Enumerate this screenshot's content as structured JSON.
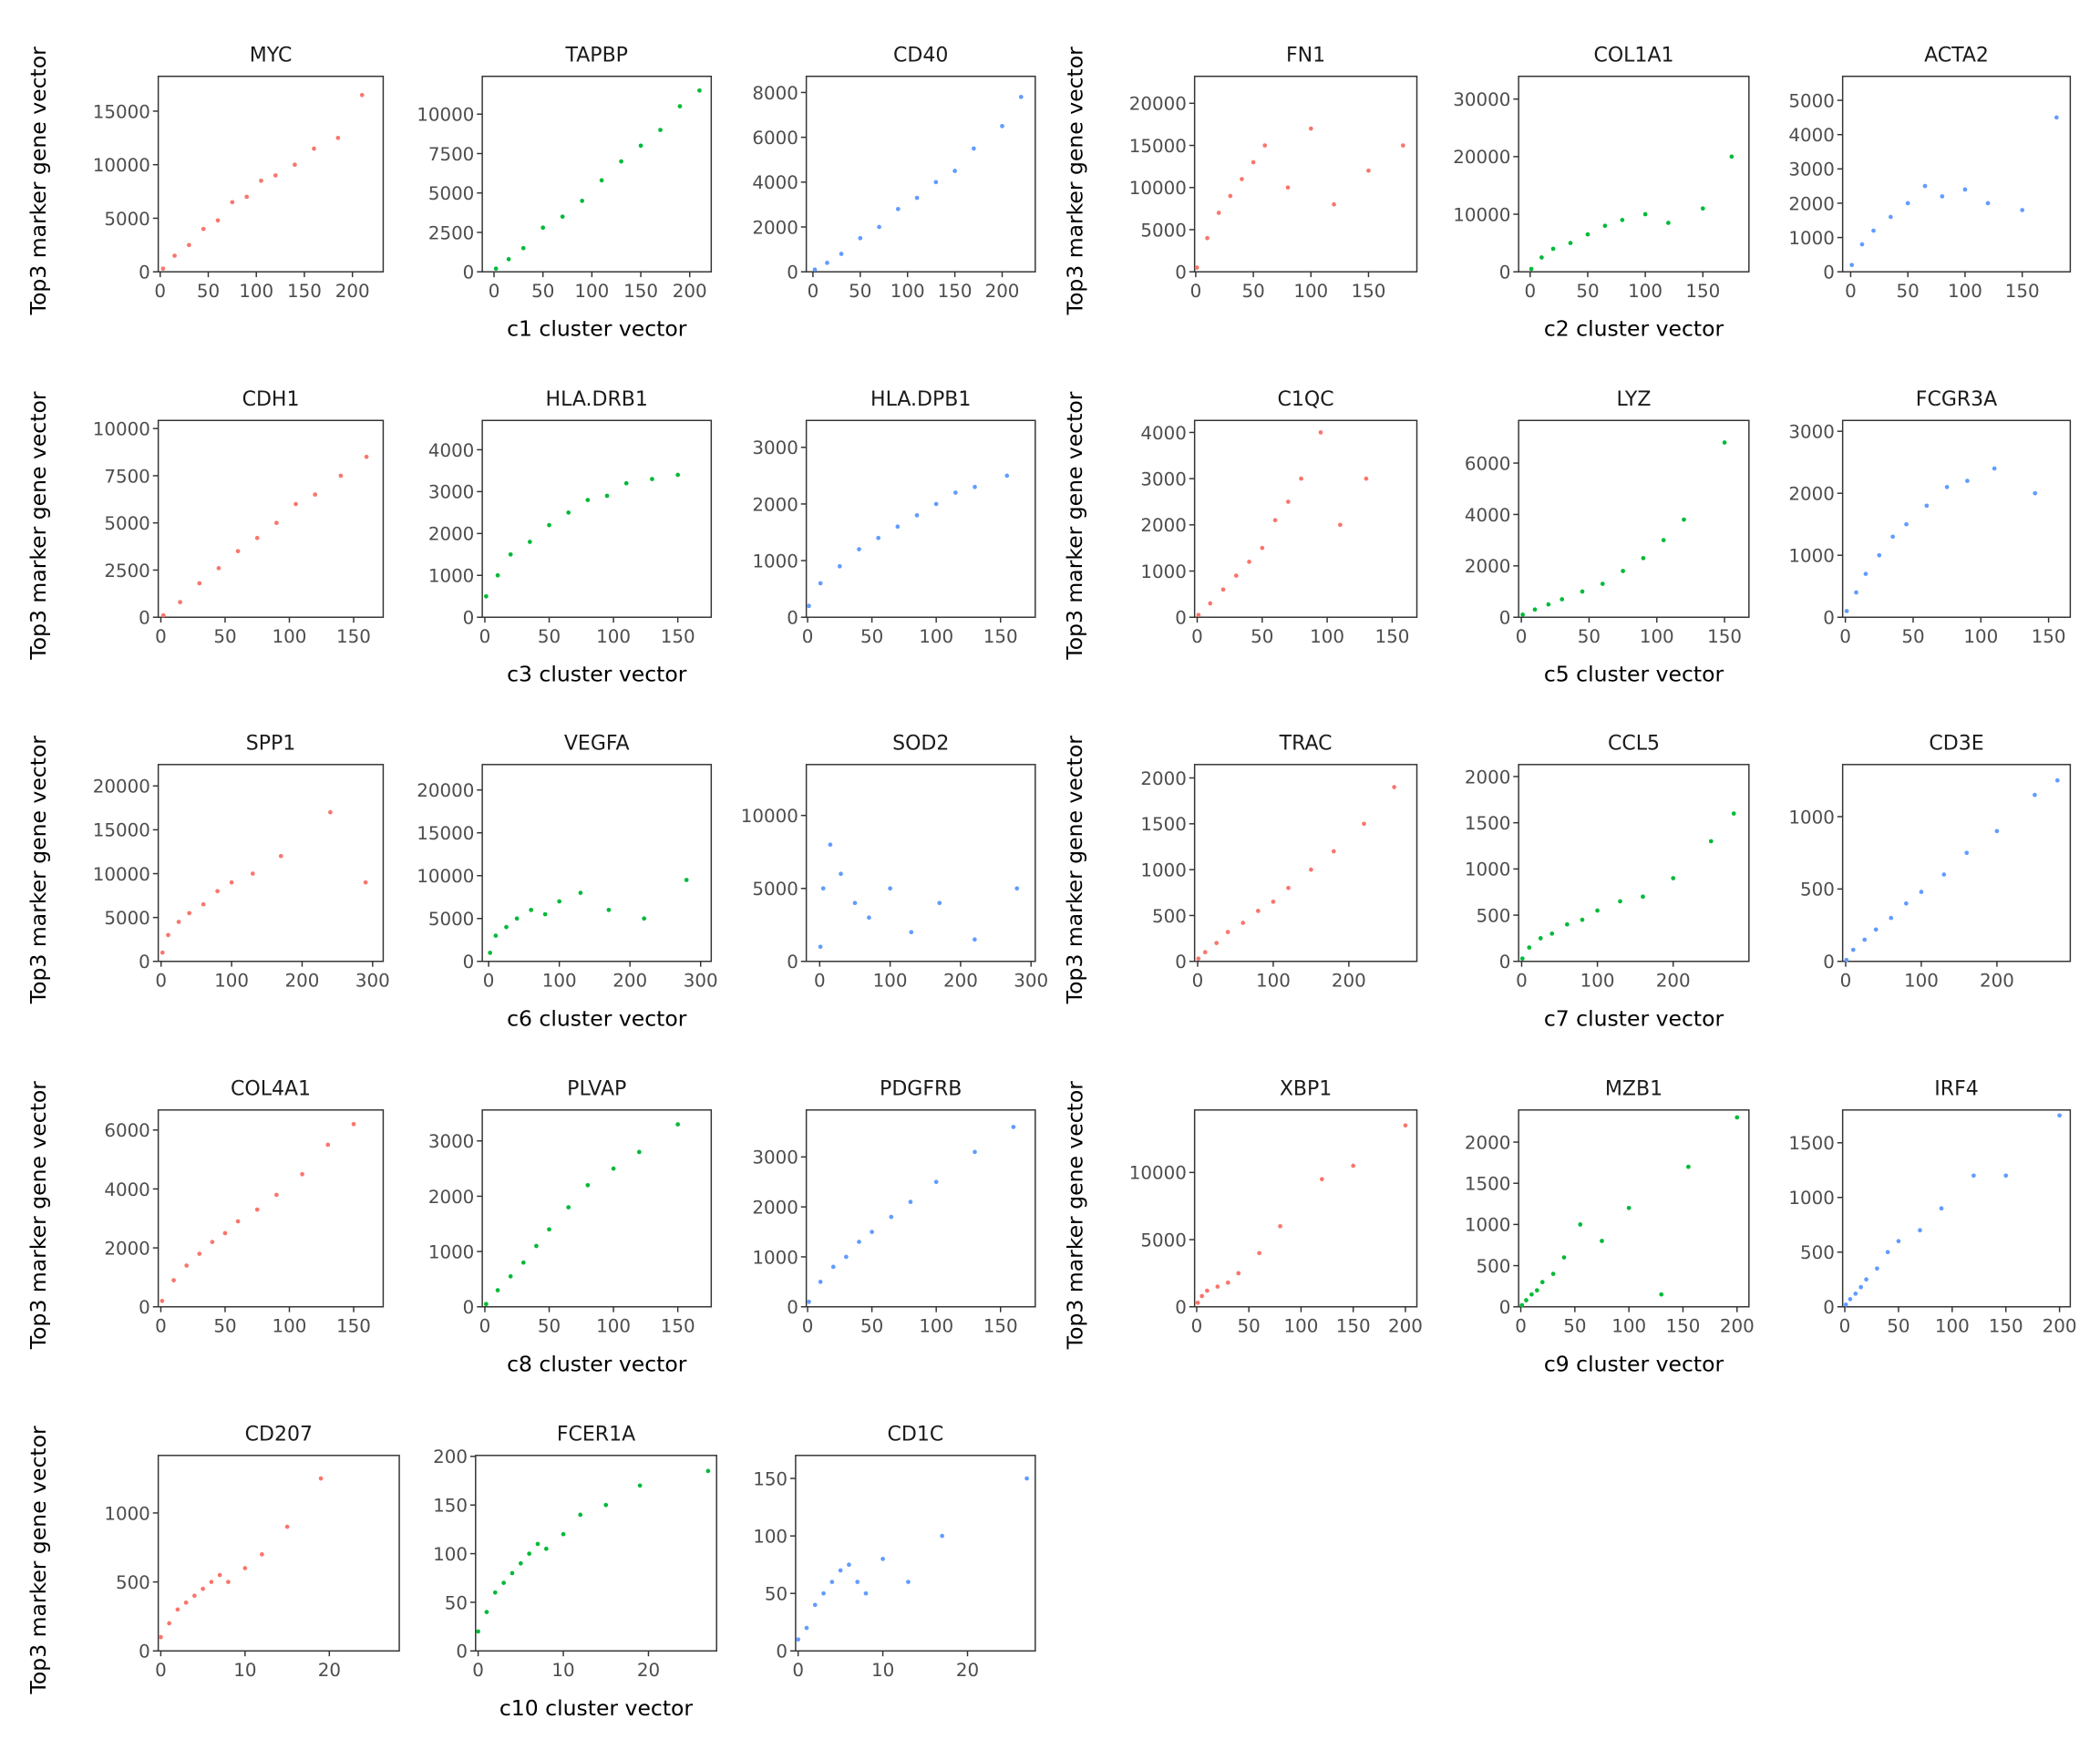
{
  "chart_data": [
    {
      "type": "scatter",
      "title": "MYC",
      "ylabel": "Top3 marker gene vector",
      "color": "#F8766D",
      "xlim": [
        -2,
        232
      ],
      "ylim": [
        0,
        18250
      ],
      "xticks": [
        0,
        50,
        100,
        150,
        200
      ],
      "yticks": [
        0,
        5000,
        10000,
        15000
      ],
      "x": [
        3,
        15,
        30,
        45,
        60,
        75,
        90,
        105,
        120,
        140,
        160,
        185,
        210
      ],
      "values": [
        300,
        1500,
        2500,
        4000,
        4800,
        6500,
        7000,
        8500,
        9000,
        10000,
        11500,
        12500,
        16500
      ]
    },
    {
      "type": "scatter",
      "title": "TAPBP",
      "xlabel": "c1 cluster vector",
      "color": "#00BA38",
      "xlim": [
        -12,
        222
      ],
      "ylim": [
        0,
        12400
      ],
      "xticks": [
        0,
        50,
        100,
        150,
        200
      ],
      "yticks": [
        0,
        2500,
        5000,
        7500,
        10000
      ],
      "x": [
        2,
        15,
        30,
        50,
        70,
        90,
        110,
        130,
        150,
        170,
        190,
        210
      ],
      "values": [
        200,
        800,
        1500,
        2800,
        3500,
        4500,
        5800,
        7000,
        8000,
        9000,
        10500,
        11500
      ]
    },
    {
      "type": "scatter",
      "title": "CD40",
      "color": "#619CFF",
      "xlim": [
        -7,
        235
      ],
      "ylim": [
        0,
        8720
      ],
      "xticks": [
        0,
        50,
        100,
        150,
        200
      ],
      "yticks": [
        0,
        2000,
        4000,
        6000,
        8000
      ],
      "x": [
        2,
        15,
        30,
        50,
        70,
        90,
        110,
        130,
        150,
        170,
        200,
        220
      ],
      "values": [
        100,
        400,
        800,
        1500,
        2000,
        2800,
        3300,
        4000,
        4500,
        5500,
        6500,
        7800
      ]
    },
    {
      "type": "scatter",
      "title": "FN1",
      "ylabel": "Top3 marker gene vector",
      "color": "#F8766D",
      "xlim": [
        -1,
        192
      ],
      "ylim": [
        0,
        23200
      ],
      "xticks": [
        0,
        50,
        100,
        150
      ],
      "yticks": [
        0,
        5000,
        10000,
        15000,
        20000
      ],
      "x": [
        1,
        10,
        20,
        30,
        40,
        50,
        60,
        80,
        100,
        120,
        150,
        180
      ],
      "values": [
        500,
        4000,
        7000,
        9000,
        11000,
        13000,
        15000,
        10000,
        17000,
        8000,
        12000,
        15000
      ]
    },
    {
      "type": "scatter",
      "title": "COL1A1",
      "xlabel": "c2 cluster vector",
      "color": "#00BA38",
      "xlim": [
        -10,
        190
      ],
      "ylim": [
        0,
        33950
      ],
      "xticks": [
        0,
        50,
        100,
        150
      ],
      "yticks": [
        0,
        10000,
        20000,
        30000
      ],
      "x": [
        1,
        10,
        20,
        35,
        50,
        65,
        80,
        100,
        120,
        150,
        175
      ],
      "values": [
        500,
        2500,
        4000,
        5000,
        6500,
        8000,
        9000,
        10000,
        8500,
        11000,
        20000
      ]
    },
    {
      "type": "scatter",
      "title": "ACTA2",
      "color": "#619CFF",
      "xlim": [
        -7,
        192
      ],
      "ylim": [
        0,
        5700
      ],
      "xticks": [
        0,
        50,
        100,
        150
      ],
      "yticks": [
        0,
        1000,
        2000,
        3000,
        4000,
        5000
      ],
      "x": [
        1,
        10,
        20,
        35,
        50,
        65,
        80,
        100,
        120,
        150,
        180
      ],
      "values": [
        200,
        800,
        1200,
        1600,
        2000,
        2500,
        2200,
        2400,
        2000,
        1800,
        4500
      ]
    },
    {
      "type": "scatter",
      "title": "CDH1",
      "ylabel": "Top3 marker gene vector",
      "color": "#F8766D",
      "xlim": [
        -2,
        173
      ],
      "ylim": [
        0,
        10430
      ],
      "xticks": [
        0,
        50,
        100,
        150
      ],
      "yticks": [
        0,
        2500,
        5000,
        7500,
        10000
      ],
      "x": [
        2,
        15,
        30,
        45,
        60,
        75,
        90,
        105,
        120,
        140,
        160
      ],
      "values": [
        100,
        800,
        1800,
        2600,
        3500,
        4200,
        5000,
        6000,
        6500,
        7500,
        8500
      ]
    },
    {
      "type": "scatter",
      "title": "HLA.DRB1",
      "xlabel": "c3 cluster vector",
      "color": "#00BA38",
      "xlim": [
        -2,
        176
      ],
      "ylim": [
        0,
        4700
      ],
      "xticks": [
        0,
        50,
        100,
        150
      ],
      "yticks": [
        0,
        1000,
        2000,
        3000,
        4000
      ],
      "x": [
        1,
        10,
        20,
        35,
        50,
        65,
        80,
        95,
        110,
        130,
        150
      ],
      "values": [
        500,
        1000,
        1500,
        1800,
        2200,
        2500,
        2800,
        2900,
        3200,
        3300,
        3400
      ]
    },
    {
      "type": "scatter",
      "title": "HLA.DPB1",
      "color": "#619CFF",
      "xlim": [
        -1,
        177
      ],
      "ylim": [
        0,
        3475
      ],
      "xticks": [
        0,
        50,
        100,
        150
      ],
      "yticks": [
        0,
        1000,
        2000,
        3000
      ],
      "x": [
        1,
        10,
        25,
        40,
        55,
        70,
        85,
        100,
        115,
        130,
        155
      ],
      "values": [
        200,
        600,
        900,
        1200,
        1400,
        1600,
        1800,
        2000,
        2200,
        2300,
        2500
      ]
    },
    {
      "type": "scatter",
      "title": "C1QC",
      "ylabel": "Top3 marker gene vector",
      "color": "#F8766D",
      "xlim": [
        -2,
        169
      ],
      "ylim": [
        0,
        4260
      ],
      "xticks": [
        0,
        50,
        100,
        150
      ],
      "yticks": [
        0,
        1000,
        2000,
        3000,
        4000
      ],
      "x": [
        1,
        10,
        20,
        30,
        40,
        50,
        60,
        70,
        80,
        95,
        110,
        130
      ],
      "values": [
        50,
        300,
        600,
        900,
        1200,
        1500,
        2100,
        2500,
        3000,
        4000,
        2000,
        3000
      ]
    },
    {
      "type": "scatter",
      "title": "LYZ",
      "xlabel": "c5 cluster vector",
      "color": "#00BA38",
      "xlim": [
        -2,
        168
      ],
      "ylim": [
        0,
        7660
      ],
      "xticks": [
        0,
        50,
        100,
        150
      ],
      "yticks": [
        0,
        2000,
        4000,
        6000
      ],
      "x": [
        1,
        10,
        20,
        30,
        45,
        60,
        75,
        90,
        105,
        120,
        150
      ],
      "values": [
        100,
        300,
        500,
        700,
        1000,
        1300,
        1800,
        2300,
        3000,
        3800,
        6800
      ]
    },
    {
      "type": "scatter",
      "title": "FCGR3A",
      "color": "#619CFF",
      "xlim": [
        -2,
        166
      ],
      "ylim": [
        0,
        3175
      ],
      "xticks": [
        0,
        50,
        100,
        150
      ],
      "yticks": [
        0,
        1000,
        2000,
        3000
      ],
      "x": [
        1,
        8,
        15,
        25,
        35,
        45,
        60,
        75,
        90,
        110,
        140
      ],
      "values": [
        100,
        400,
        700,
        1000,
        1300,
        1500,
        1800,
        2100,
        2200,
        2400,
        2000
      ]
    },
    {
      "type": "scatter",
      "title": "SPP1",
      "ylabel": "Top3 marker gene vector",
      "color": "#F8766D",
      "xlim": [
        -4,
        315
      ],
      "ylim": [
        0,
        22440
      ],
      "xticks": [
        0,
        100,
        200,
        300
      ],
      "yticks": [
        0,
        5000,
        10000,
        15000,
        20000
      ],
      "x": [
        2,
        10,
        25,
        40,
        60,
        80,
        100,
        130,
        170,
        240,
        290
      ],
      "values": [
        1000,
        3000,
        4500,
        5500,
        6500,
        8000,
        9000,
        10000,
        12000,
        17000,
        9000
      ]
    },
    {
      "type": "scatter",
      "title": "VEGFA",
      "xlabel": "c6 cluster vector",
      "color": "#00BA38",
      "xlim": [
        -9,
        315
      ],
      "ylim": [
        0,
        22970
      ],
      "xticks": [
        0,
        100,
        200,
        300
      ],
      "yticks": [
        0,
        5000,
        10000,
        15000,
        20000
      ],
      "x": [
        2,
        10,
        25,
        40,
        60,
        80,
        100,
        130,
        170,
        220,
        280
      ],
      "values": [
        1000,
        3000,
        4000,
        5000,
        6000,
        5500,
        7000,
        8000,
        6000,
        5000,
        9500
      ]
    },
    {
      "type": "scatter",
      "title": "SOD2",
      "color": "#619CFF",
      "xlim": [
        -19,
        306
      ],
      "ylim": [
        0,
        13490
      ],
      "xticks": [
        0,
        100,
        200,
        300
      ],
      "yticks": [
        0,
        5000,
        10000
      ],
      "x": [
        1,
        5,
        15,
        30,
        50,
        70,
        100,
        130,
        170,
        220,
        280
      ],
      "values": [
        1000,
        5000,
        8000,
        6000,
        4000,
        3000,
        5000,
        2000,
        4000,
        1500,
        5000
      ]
    },
    {
      "type": "scatter",
      "title": "TRAC",
      "ylabel": "Top3 marker gene vector",
      "color": "#F8766D",
      "xlim": [
        -4,
        290
      ],
      "ylim": [
        0,
        2146
      ],
      "xticks": [
        0,
        100,
        200
      ],
      "yticks": [
        0,
        500,
        1000,
        1500,
        2000
      ],
      "x": [
        1,
        10,
        25,
        40,
        60,
        80,
        100,
        120,
        150,
        180,
        220,
        260
      ],
      "values": [
        30,
        100,
        200,
        320,
        420,
        550,
        650,
        800,
        1000,
        1200,
        1500,
        1900
      ]
    },
    {
      "type": "scatter",
      "title": "CCL5",
      "xlabel": "c7 cluster vector",
      "color": "#00BA38",
      "xlim": [
        -4,
        300
      ],
      "ylim": [
        0,
        2130
      ],
      "xticks": [
        0,
        100,
        200
      ],
      "yticks": [
        0,
        500,
        1000,
        1500,
        2000
      ],
      "x": [
        1,
        10,
        25,
        40,
        60,
        80,
        100,
        130,
        160,
        200,
        250,
        280
      ],
      "values": [
        30,
        150,
        250,
        300,
        400,
        450,
        550,
        650,
        700,
        900,
        1300,
        1600
      ]
    },
    {
      "type": "scatter",
      "title": "CD3E",
      "color": "#619CFF",
      "xlim": [
        -4,
        297
      ],
      "ylim": [
        0,
        1360
      ],
      "xticks": [
        0,
        100,
        200
      ],
      "yticks": [
        0,
        500,
        1000
      ],
      "x": [
        1,
        10,
        25,
        40,
        60,
        80,
        100,
        130,
        160,
        200,
        250,
        280
      ],
      "values": [
        10,
        80,
        150,
        220,
        300,
        400,
        480,
        600,
        750,
        900,
        1150,
        1250
      ]
    },
    {
      "type": "scatter",
      "title": "COL4A1",
      "ylabel": "Top3 marker gene vector",
      "color": "#F8766D",
      "xlim": [
        -2,
        173
      ],
      "ylim": [
        0,
        6680
      ],
      "xticks": [
        0,
        50,
        100,
        150
      ],
      "yticks": [
        0,
        2000,
        4000,
        6000
      ],
      "x": [
        1,
        10,
        20,
        30,
        40,
        50,
        60,
        75,
        90,
        110,
        130,
        150
      ],
      "values": [
        200,
        900,
        1400,
        1800,
        2200,
        2500,
        2900,
        3300,
        3800,
        4500,
        5500,
        6200
      ]
    },
    {
      "type": "scatter",
      "title": "PLVAP",
      "xlabel": "c8 cluster vector",
      "color": "#00BA38",
      "xlim": [
        -2,
        176
      ],
      "ylim": [
        0,
        3560
      ],
      "xticks": [
        0,
        50,
        100,
        150
      ],
      "yticks": [
        0,
        1000,
        2000,
        3000
      ],
      "x": [
        1,
        10,
        20,
        30,
        40,
        50,
        65,
        80,
        100,
        120,
        150
      ],
      "values": [
        50,
        300,
        550,
        800,
        1100,
        1400,
        1800,
        2200,
        2500,
        2800,
        3300
      ]
    },
    {
      "type": "scatter",
      "title": "PDGFRB",
      "color": "#619CFF",
      "xlim": [
        -1,
        177
      ],
      "ylim": [
        0,
        3940
      ],
      "xticks": [
        0,
        50,
        100,
        150
      ],
      "yticks": [
        0,
        1000,
        2000,
        3000
      ],
      "x": [
        1,
        10,
        20,
        30,
        40,
        50,
        65,
        80,
        100,
        130,
        160
      ],
      "values": [
        100,
        500,
        800,
        1000,
        1300,
        1500,
        1800,
        2100,
        2500,
        3100,
        3600
      ]
    },
    {
      "type": "scatter",
      "title": "XBP1",
      "ylabel": "Top3 marker gene vector",
      "color": "#F8766D",
      "xlim": [
        -2,
        211
      ],
      "ylim": [
        0,
        14650
      ],
      "xticks": [
        0,
        50,
        100,
        150,
        200
      ],
      "yticks": [
        0,
        5000,
        10000
      ],
      "x": [
        1,
        5,
        10,
        20,
        30,
        40,
        60,
        80,
        120,
        150,
        200
      ],
      "values": [
        300,
        800,
        1200,
        1500,
        1800,
        2500,
        4000,
        6000,
        9500,
        10500,
        13500
      ]
    },
    {
      "type": "scatter",
      "title": "MZB1",
      "xlabel": "c9 cluster vector",
      "color": "#00BA38",
      "xlim": [
        -2,
        211
      ],
      "ylim": [
        0,
        2390
      ],
      "xticks": [
        0,
        50,
        100,
        150,
        200
      ],
      "yticks": [
        0,
        500,
        1000,
        1500,
        2000
      ],
      "x": [
        1,
        5,
        10,
        15,
        20,
        30,
        40,
        55,
        75,
        100,
        130,
        155,
        200
      ],
      "values": [
        20,
        80,
        150,
        200,
        300,
        400,
        600,
        1000,
        800,
        1200,
        150,
        1700,
        2300
      ]
    },
    {
      "type": "scatter",
      "title": "IRF4",
      "color": "#619CFF",
      "xlim": [
        -2,
        210
      ],
      "ylim": [
        0,
        1800
      ],
      "xticks": [
        0,
        50,
        100,
        150,
        200
      ],
      "yticks": [
        0,
        500,
        1000,
        1500
      ],
      "x": [
        1,
        5,
        10,
        15,
        20,
        30,
        40,
        50,
        70,
        90,
        120,
        150,
        200
      ],
      "values": [
        20,
        70,
        120,
        180,
        250,
        350,
        500,
        600,
        700,
        900,
        1200,
        1200,
        1750
      ]
    },
    {
      "type": "scatter",
      "title": "CD207",
      "ylabel": "Top3 marker gene vector",
      "color": "#F8766D",
      "xlim": [
        -0.3,
        28.3
      ],
      "ylim": [
        0,
        1417
      ],
      "xticks": [
        0,
        10,
        20
      ],
      "yticks": [
        0,
        500,
        1000
      ],
      "x": [
        0,
        1,
        2,
        3,
        4,
        5,
        6,
        7,
        8,
        10,
        12,
        15,
        19
      ],
      "values": [
        100,
        200,
        300,
        350,
        400,
        450,
        500,
        550,
        500,
        600,
        700,
        900,
        1250
      ]
    },
    {
      "type": "scatter",
      "title": "FCER1A",
      "xlabel": "c10 cluster vector",
      "color": "#00BA38",
      "xlim": [
        -0.3,
        28
      ],
      "ylim": [
        0,
        201
      ],
      "xticks": [
        0,
        10,
        20
      ],
      "yticks": [
        0,
        50,
        100,
        150,
        200
      ],
      "x": [
        0,
        1,
        2,
        3,
        4,
        5,
        6,
        7,
        8,
        10,
        12,
        15,
        19,
        27
      ],
      "values": [
        20,
        40,
        60,
        70,
        80,
        90,
        100,
        110,
        105,
        120,
        140,
        150,
        170,
        185
      ]
    },
    {
      "type": "scatter",
      "title": "CD1C",
      "color": "#619CFF",
      "xlim": [
        -0.3,
        28
      ],
      "ylim": [
        0,
        170
      ],
      "xticks": [
        0,
        10,
        20
      ],
      "yticks": [
        0,
        50,
        100,
        150
      ],
      "x": [
        0,
        1,
        2,
        3,
        4,
        5,
        6,
        7,
        8,
        10,
        13,
        17,
        27
      ],
      "values": [
        10,
        20,
        40,
        50,
        60,
        70,
        75,
        60,
        50,
        80,
        60,
        100,
        150
      ]
    }
  ]
}
